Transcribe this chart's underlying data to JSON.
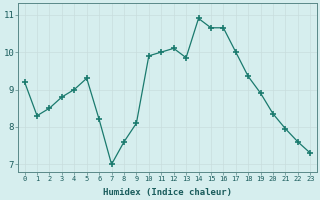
{
  "x": [
    0,
    1,
    2,
    3,
    4,
    5,
    6,
    7,
    8,
    9,
    10,
    11,
    12,
    13,
    14,
    15,
    16,
    17,
    18,
    19,
    20,
    21,
    22,
    23
  ],
  "y": [
    9.2,
    8.3,
    8.5,
    8.8,
    9.0,
    9.3,
    8.2,
    7.0,
    7.6,
    8.1,
    9.9,
    10.0,
    10.1,
    9.85,
    10.9,
    10.65,
    10.65,
    10.0,
    9.35,
    8.9,
    8.35,
    7.95,
    7.6,
    7.3
  ],
  "xlabel": "Humidex (Indice chaleur)",
  "ylim": [
    6.8,
    11.3
  ],
  "xlim": [
    -0.5,
    23.5
  ],
  "yticks": [
    7,
    8,
    9,
    10,
    11
  ],
  "xticks": [
    0,
    1,
    2,
    3,
    4,
    5,
    6,
    7,
    8,
    9,
    10,
    11,
    12,
    13,
    14,
    15,
    16,
    17,
    18,
    19,
    20,
    21,
    22,
    23
  ],
  "xtick_labels": [
    "0",
    "1",
    "2",
    "3",
    "4",
    "5",
    "6",
    "7",
    "8",
    "9",
    "10",
    "11",
    "12",
    "13",
    "14",
    "15",
    "16",
    "17",
    "18",
    "19",
    "20",
    "21",
    "22",
    "23"
  ],
  "line_color": "#1a7a6e",
  "marker_color": "#1a7a6e",
  "bg_color": "#d6eeee",
  "grid_color": "#c8dddd",
  "tick_color": "#1a5c5c",
  "label_color": "#1a5c5c",
  "spine_color": "#5a8888"
}
